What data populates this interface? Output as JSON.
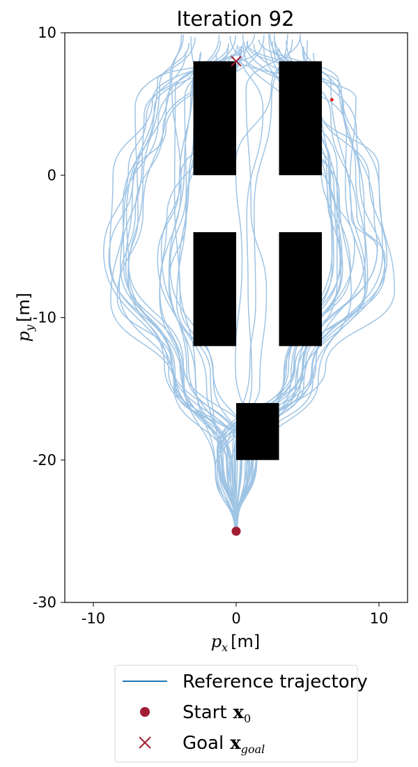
{
  "chart_data": {
    "type": "line",
    "title": "Iteration 92",
    "xlabel": "p_x [m]",
    "xlabel_main": "p",
    "xlabel_sub": "x",
    "xlabel_unit": "[m]",
    "ylabel": "p_y [m]",
    "ylabel_main": "p",
    "ylabel_sub": "y",
    "ylabel_unit": "[m]",
    "xlim": [
      -12,
      12
    ],
    "ylim": [
      -30,
      10
    ],
    "xticks": [
      -10,
      0,
      10
    ],
    "xtick_labels": [
      "-10",
      "0",
      "10"
    ],
    "yticks": [
      10,
      0,
      -10,
      -20,
      -30
    ],
    "ytick_labels": [
      "10",
      "0",
      "-10",
      "-20",
      "-30"
    ],
    "obstacles": [
      {
        "x0": -3,
        "x1": 0,
        "y0": 0,
        "y1": 8
      },
      {
        "x0": 3,
        "x1": 6,
        "y0": 0,
        "y1": 8
      },
      {
        "x0": -3,
        "x1": 0,
        "y0": -12,
        "y1": -4
      },
      {
        "x0": 3,
        "x1": 6,
        "y0": -12,
        "y1": -4
      },
      {
        "x0": 0,
        "x1": 3,
        "y0": -20,
        "y1": -16
      }
    ],
    "start": {
      "x": 0,
      "y": -25
    },
    "goal": {
      "x": 0,
      "y": 8
    },
    "current_point": {
      "x": 6.7,
      "y": 5.3
    },
    "trajectory_count": 48,
    "colors": {
      "trajectory": "#9fc4e4",
      "legend_line": "#1f77b4",
      "start": "#a11d33",
      "goal": "#a11d33",
      "current_point": "#e31a1c",
      "obstacle": "#000000"
    },
    "legend": {
      "placement": "below",
      "entries": [
        {
          "label": "Reference trajectory",
          "marker": "line"
        },
        {
          "label": "Start",
          "math": "x",
          "sub": "0",
          "marker": "circle"
        },
        {
          "label": "Goal",
          "math": "x",
          "sub": "goal",
          "marker": "x"
        }
      ]
    }
  }
}
